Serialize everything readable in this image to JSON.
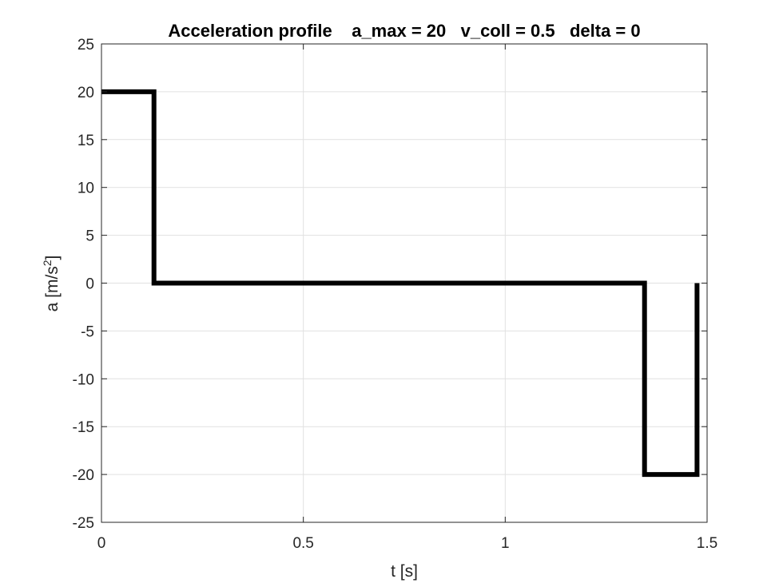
{
  "chart_data": {
    "type": "line",
    "title": "Acceleration profile    a_max = 20   v_coll = 0.5   delta = 0",
    "xlabel": "t [s]",
    "ylabel_main": "a [m/s",
    "ylabel_sup": "2",
    "ylabel_end": "]",
    "xlim": [
      0,
      1.5
    ],
    "ylim": [
      -25,
      25
    ],
    "x_ticks": [
      0,
      0.5,
      1,
      1.5
    ],
    "x_tick_labels": [
      "0",
      "0.5",
      "1",
      "1.5"
    ],
    "y_ticks": [
      25,
      20,
      15,
      10,
      5,
      0,
      -5,
      -10,
      -15,
      -20,
      -25
    ],
    "y_tick_labels": [
      "25",
      "20",
      "15",
      "10",
      "5",
      "0",
      "-5",
      "-10",
      "-15",
      "-20",
      "-25"
    ],
    "grid": true,
    "series": [
      {
        "color": "#000000",
        "x": [
          0,
          0.13,
          0.13,
          1.345,
          1.345,
          1.475,
          1.475
        ],
        "y": [
          20,
          20,
          0,
          0,
          -20,
          -20,
          0
        ]
      }
    ]
  }
}
